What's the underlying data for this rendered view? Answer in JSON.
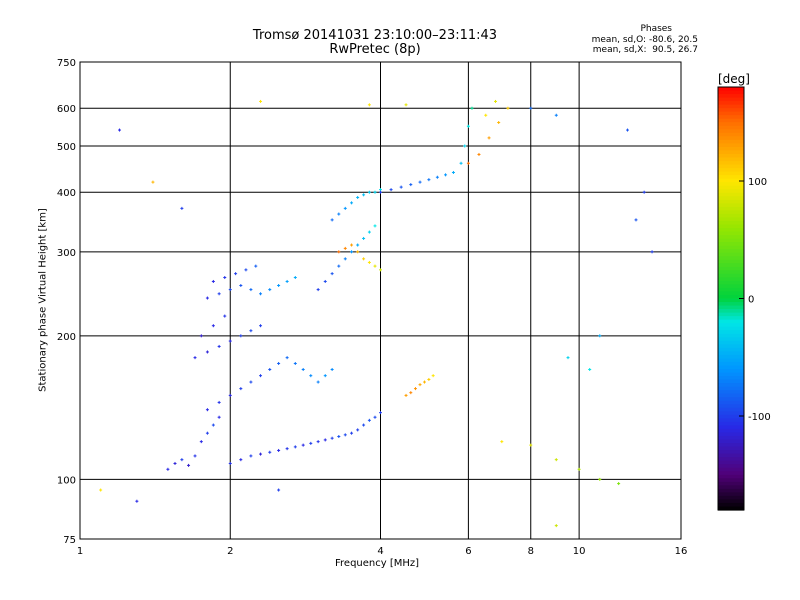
{
  "chart_data": {
    "type": "scatter",
    "title": "Tromsø 20141031 23:10:00–23:11:43",
    "subtitle": "RwPretec (8p)",
    "xlabel": "Frequency [MHz]",
    "ylabel": "Stationary phase Virtual Height [km]",
    "xscale": "log",
    "yscale": "log",
    "xlim": [
      1,
      16
    ],
    "ylim": [
      75,
      750
    ],
    "xticks": [
      1,
      2,
      4,
      6,
      8,
      10,
      16
    ],
    "yticks": [
      75,
      100,
      200,
      300,
      400,
      500,
      600,
      750
    ],
    "grid": true,
    "colorbar": {
      "label": "[deg]",
      "ticks": [
        100,
        0,
        -100
      ],
      "range": [
        -180,
        180
      ],
      "colormap": "rainbow"
    },
    "phases_note": {
      "heading": "Phases",
      "line1": "mean, sd,O: -80.6, 20.5",
      "line2": "mean, sd,X:  90.5, 26.7"
    },
    "series": [
      {
        "points": [
          [
            1.5,
            105,
            -110
          ],
          [
            1.55,
            108,
            -115
          ],
          [
            1.6,
            110,
            -100
          ],
          [
            1.65,
            107,
            -120
          ],
          [
            1.7,
            112,
            -105
          ],
          [
            1.75,
            120,
            -110
          ],
          [
            1.8,
            125,
            -100
          ],
          [
            1.85,
            130,
            -95
          ],
          [
            1.9,
            135,
            -110
          ],
          [
            2.0,
            108,
            -105
          ],
          [
            2.1,
            110,
            -110
          ],
          [
            2.2,
            112,
            -100
          ],
          [
            2.3,
            113,
            -115
          ],
          [
            2.4,
            114,
            -100
          ],
          [
            2.5,
            115,
            -110
          ],
          [
            2.6,
            116,
            -105
          ],
          [
            2.7,
            117,
            -100
          ],
          [
            2.8,
            118,
            -110
          ],
          [
            2.9,
            119,
            -100
          ],
          [
            3.0,
            120,
            -105
          ],
          [
            3.1,
            121,
            -110
          ],
          [
            3.2,
            122,
            -100
          ],
          [
            3.3,
            123,
            -90
          ],
          [
            3.4,
            124,
            -95
          ],
          [
            3.5,
            125,
            -100
          ],
          [
            3.6,
            127,
            -100
          ],
          [
            3.7,
            130,
            -95
          ],
          [
            3.8,
            133,
            -90
          ],
          [
            3.9,
            135,
            -95
          ],
          [
            4.0,
            138,
            -100
          ]
        ]
      },
      {
        "points": [
          [
            1.8,
            140,
            -110
          ],
          [
            1.9,
            145,
            -105
          ],
          [
            2.0,
            150,
            -110
          ],
          [
            2.1,
            155,
            -100
          ],
          [
            2.2,
            160,
            -95
          ],
          [
            2.3,
            165,
            -100
          ],
          [
            2.4,
            170,
            -90
          ],
          [
            2.5,
            175,
            -85
          ],
          [
            2.6,
            180,
            -80
          ],
          [
            2.7,
            175,
            -75
          ],
          [
            2.8,
            170,
            -70
          ],
          [
            2.9,
            165,
            -65
          ],
          [
            3.0,
            160,
            -70
          ],
          [
            3.1,
            165,
            -60
          ],
          [
            3.2,
            170,
            -65
          ]
        ]
      },
      {
        "points": [
          [
            1.7,
            180,
            -110
          ],
          [
            1.8,
            185,
            -115
          ],
          [
            1.9,
            190,
            -105
          ],
          [
            2.0,
            195,
            -110
          ],
          [
            2.1,
            200,
            -100
          ],
          [
            2.2,
            205,
            -95
          ],
          [
            2.3,
            210,
            -100
          ],
          [
            1.75,
            200,
            -120
          ],
          [
            1.85,
            210,
            -110
          ],
          [
            1.95,
            220,
            -105
          ]
        ]
      },
      {
        "points": [
          [
            1.8,
            240,
            -110
          ],
          [
            1.9,
            245,
            -100
          ],
          [
            2.0,
            250,
            -95
          ],
          [
            2.1,
            255,
            -90
          ],
          [
            2.2,
            250,
            -80
          ],
          [
            2.3,
            245,
            -70
          ],
          [
            2.4,
            250,
            -65
          ],
          [
            2.5,
            255,
            -60
          ],
          [
            2.6,
            260,
            -55
          ],
          [
            2.7,
            265,
            -50
          ],
          [
            1.85,
            260,
            -110
          ],
          [
            1.95,
            265,
            -105
          ],
          [
            2.05,
            270,
            -100
          ],
          [
            2.15,
            275,
            -95
          ],
          [
            2.25,
            280,
            -85
          ]
        ]
      },
      {
        "points": [
          [
            3.0,
            250,
            -100
          ],
          [
            3.1,
            260,
            -95
          ],
          [
            3.2,
            270,
            -90
          ],
          [
            3.3,
            280,
            -80
          ],
          [
            3.4,
            290,
            -70
          ],
          [
            3.5,
            300,
            -60
          ],
          [
            3.6,
            310,
            -50
          ],
          [
            3.7,
            320,
            -40
          ],
          [
            3.8,
            330,
            -30
          ],
          [
            3.9,
            340,
            -20
          ],
          [
            3.2,
            350,
            -80
          ],
          [
            3.3,
            360,
            -70
          ],
          [
            3.4,
            370,
            -60
          ],
          [
            3.5,
            380,
            -50
          ],
          [
            3.6,
            390,
            -45
          ],
          [
            3.7,
            395,
            -40
          ],
          [
            3.8,
            400,
            -35
          ],
          [
            3.9,
            400,
            -30
          ],
          [
            4.0,
            405,
            -25
          ]
        ]
      },
      {
        "points": [
          [
            3.3,
            300,
            150
          ],
          [
            3.4,
            305,
            140
          ],
          [
            3.5,
            310,
            130
          ],
          [
            3.6,
            300,
            120
          ],
          [
            3.7,
            290,
            110
          ],
          [
            3.8,
            285,
            100
          ],
          [
            3.9,
            280,
            90
          ],
          [
            4.0,
            275,
            80
          ]
        ]
      },
      {
        "points": [
          [
            4.0,
            400,
            -100
          ],
          [
            4.2,
            405,
            -95
          ],
          [
            4.4,
            410,
            -90
          ],
          [
            4.6,
            415,
            -85
          ],
          [
            4.8,
            420,
            -80
          ],
          [
            5.0,
            425,
            -75
          ],
          [
            5.2,
            430,
            -70
          ],
          [
            5.4,
            435,
            -60
          ],
          [
            5.6,
            440,
            -50
          ],
          [
            5.8,
            460,
            -40
          ],
          [
            5.9,
            500,
            -30
          ],
          [
            6.0,
            550,
            -20
          ],
          [
            6.1,
            600,
            -10
          ]
        ]
      },
      {
        "points": [
          [
            4.5,
            150,
            130
          ],
          [
            4.6,
            152,
            140
          ],
          [
            4.7,
            155,
            135
          ],
          [
            4.8,
            158,
            125
          ],
          [
            4.9,
            160,
            120
          ],
          [
            5.0,
            162,
            110
          ],
          [
            5.1,
            165,
            100
          ]
        ]
      },
      {
        "points": [
          [
            6.0,
            460,
            150
          ],
          [
            6.3,
            480,
            140
          ],
          [
            6.6,
            520,
            130
          ],
          [
            6.9,
            560,
            120
          ],
          [
            7.2,
            600,
            110
          ],
          [
            6.5,
            580,
            100
          ],
          [
            6.8,
            620,
            90
          ]
        ]
      },
      {
        "points": [
          [
            1.2,
            540,
            -110
          ],
          [
            1.4,
            420,
            120
          ],
          [
            1.6,
            370,
            -100
          ],
          [
            2.3,
            620,
            100
          ],
          [
            3.8,
            610,
            100
          ],
          [
            4.5,
            610,
            90
          ],
          [
            8.0,
            600,
            -80
          ],
          [
            9.0,
            580,
            -70
          ],
          [
            12.5,
            540,
            -90
          ],
          [
            13.5,
            400,
            -100
          ],
          [
            11.0,
            200,
            -50
          ],
          [
            9.5,
            180,
            -30
          ],
          [
            10.5,
            170,
            -20
          ],
          [
            7.0,
            120,
            100
          ],
          [
            8.0,
            118,
            90
          ],
          [
            9.0,
            110,
            80
          ],
          [
            10.0,
            105,
            70
          ],
          [
            11.0,
            100,
            60
          ],
          [
            12.0,
            98,
            50
          ],
          [
            1.1,
            95,
            100
          ],
          [
            1.3,
            90,
            -110
          ],
          [
            2.5,
            95,
            -100
          ],
          [
            9.0,
            80,
            80
          ],
          [
            14.0,
            300,
            -100
          ],
          [
            13.0,
            350,
            -90
          ]
        ]
      }
    ]
  }
}
